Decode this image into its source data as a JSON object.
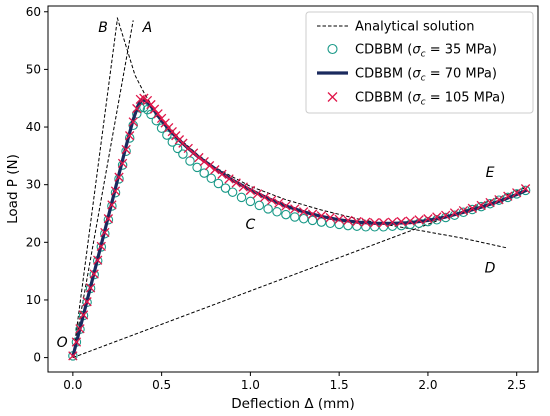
{
  "chart_data": {
    "type": "line",
    "xlabel": "Deflection Δ (mm)",
    "ylabel": "Load P (N)",
    "xlim": [
      -0.14,
      2.62
    ],
    "ylim": [
      -2.5,
      61
    ],
    "xticks": [
      0.0,
      0.5,
      1.0,
      1.5,
      2.0,
      2.5
    ],
    "yticks": [
      0,
      10,
      20,
      30,
      40,
      50,
      60
    ],
    "xtick_labels": [
      "0.0",
      "0.5",
      "1.0",
      "1.5",
      "2.0",
      "2.5"
    ],
    "ytick_labels": [
      "0",
      "10",
      "20",
      "30",
      "40",
      "50",
      "60"
    ],
    "grid": false,
    "legend_position": "top-right",
    "annotations": [
      {
        "text": "A",
        "x": 0.42,
        "y": 56.5
      },
      {
        "text": "B",
        "x": 0.17,
        "y": 56.5
      },
      {
        "text": "C",
        "x": 1.0,
        "y": 22.3
      },
      {
        "text": "D",
        "x": 2.35,
        "y": 14.8
      },
      {
        "text": "E",
        "x": 2.35,
        "y": 31.3
      },
      {
        "text": "O",
        "x": -0.06,
        "y": 1.8
      }
    ],
    "series": [
      {
        "name": "Analytical solution",
        "style": "dashed",
        "color": "#000000",
        "segments": [
          {
            "x": [
              0.0,
              0.34
            ],
            "y": [
              0.0,
              58.5
            ]
          },
          {
            "x": [
              0.0,
              0.25
            ],
            "y": [
              0.0,
              58.5
            ]
          },
          {
            "x": [
              0.25,
              0.3,
              0.35,
              0.4,
              0.45,
              0.5,
              0.6,
              0.7,
              0.8,
              1.0,
              1.2,
              1.4,
              1.6,
              1.8,
              2.0,
              2.2,
              2.45
            ],
            "y": [
              59.0,
              54.0,
              49.0,
              46.0,
              43.5,
              41.5,
              38.0,
              35.3,
              33.0,
              29.7,
              27.4,
              25.6,
              24.1,
              22.9,
              21.8,
              20.7,
              19.0
            ]
          },
          {
            "x": [
              0.0,
              2.55
            ],
            "y": [
              0.0,
              29.5
            ]
          }
        ]
      },
      {
        "name": "CDBBM (σc = 35 MPa)",
        "legend_label": "CDBBM (",
        "legend_sym": "σ",
        "legend_sub": "c",
        "legend_rest": " = 35 MPa)",
        "marker": "circle-open",
        "color": "#1a9988",
        "x": [
          0.0,
          0.02,
          0.04,
          0.06,
          0.08,
          0.1,
          0.12,
          0.14,
          0.16,
          0.18,
          0.2,
          0.22,
          0.24,
          0.26,
          0.28,
          0.3,
          0.32,
          0.34,
          0.36,
          0.38,
          0.4,
          0.42,
          0.44,
          0.47,
          0.5,
          0.53,
          0.56,
          0.59,
          0.62,
          0.66,
          0.7,
          0.74,
          0.78,
          0.82,
          0.86,
          0.9,
          0.95,
          1.0,
          1.05,
          1.1,
          1.15,
          1.2,
          1.25,
          1.3,
          1.35,
          1.4,
          1.45,
          1.5,
          1.55,
          1.6,
          1.65,
          1.7,
          1.75,
          1.8,
          1.85,
          1.9,
          1.95,
          2.0,
          2.05,
          2.1,
          2.15,
          2.2,
          2.25,
          2.3,
          2.35,
          2.4,
          2.45,
          2.5,
          2.55
        ],
        "y": [
          0.3,
          2.7,
          4.9,
          7.3,
          9.6,
          12.0,
          14.4,
          16.8,
          19.2,
          21.5,
          23.9,
          26.3,
          28.6,
          31.0,
          33.4,
          35.8,
          38.1,
          40.3,
          42.3,
          43.3,
          43.4,
          43.0,
          42.2,
          41.1,
          39.8,
          38.6,
          37.4,
          36.3,
          35.3,
          34.1,
          33.0,
          32.0,
          31.1,
          30.2,
          29.4,
          28.7,
          27.8,
          27.1,
          26.4,
          25.8,
          25.3,
          24.8,
          24.4,
          24.1,
          23.8,
          23.5,
          23.3,
          23.1,
          22.9,
          22.8,
          22.7,
          22.7,
          22.7,
          22.8,
          22.9,
          23.1,
          23.3,
          23.6,
          23.9,
          24.3,
          24.7,
          25.2,
          25.7,
          26.2,
          26.7,
          27.3,
          27.8,
          28.4,
          29.0
        ]
      },
      {
        "name": "CDBBM (σc = 70 MPa)",
        "legend_label": "CDBBM (",
        "legend_sym": "σ",
        "legend_sub": "c",
        "legend_rest": " = 70 MPa)",
        "marker": "line",
        "color": "#1b2a5e",
        "x": [
          0.0,
          0.05,
          0.1,
          0.15,
          0.2,
          0.25,
          0.3,
          0.34,
          0.37,
          0.39,
          0.41,
          0.43,
          0.46,
          0.5,
          0.55,
          0.6,
          0.65,
          0.7,
          0.8,
          0.9,
          1.0,
          1.1,
          1.2,
          1.3,
          1.4,
          1.5,
          1.6,
          1.7,
          1.8,
          1.9,
          2.0,
          2.1,
          2.2,
          2.3,
          2.4,
          2.5,
          2.56
        ],
        "y": [
          0.2,
          6.2,
          12.3,
          18.4,
          24.5,
          30.6,
          36.7,
          41.3,
          43.9,
          44.7,
          44.6,
          44.0,
          42.8,
          41.1,
          39.3,
          37.7,
          36.3,
          35.0,
          32.8,
          30.8,
          29.1,
          27.6,
          26.3,
          25.3,
          24.5,
          23.9,
          23.5,
          23.3,
          23.3,
          23.4,
          23.8,
          24.4,
          25.2,
          26.1,
          27.1,
          28.3,
          29.1
        ]
      },
      {
        "name": "CDBBM (σc = 105 MPa)",
        "legend_label": "CDBBM (",
        "legend_sym": "σ",
        "legend_sub": "c",
        "legend_rest": " = 105 MPa)",
        "marker": "x",
        "color": "#e0164a",
        "x": [
          0.0,
          0.02,
          0.04,
          0.06,
          0.08,
          0.1,
          0.12,
          0.14,
          0.16,
          0.18,
          0.2,
          0.22,
          0.24,
          0.26,
          0.28,
          0.3,
          0.32,
          0.34,
          0.36,
          0.38,
          0.4,
          0.42,
          0.44,
          0.46,
          0.48,
          0.5,
          0.52,
          0.54,
          0.56,
          0.58,
          0.6,
          0.62,
          0.65,
          0.68,
          0.71,
          0.74,
          0.77,
          0.8,
          0.84,
          0.88,
          0.92,
          0.96,
          1.0,
          1.04,
          1.08,
          1.12,
          1.16,
          1.2,
          1.25,
          1.3,
          1.35,
          1.4,
          1.45,
          1.5,
          1.55,
          1.6,
          1.65,
          1.7,
          1.75,
          1.8,
          1.85,
          1.9,
          1.95,
          2.0,
          2.05,
          2.1,
          2.15,
          2.2,
          2.25,
          2.3,
          2.35,
          2.4,
          2.45,
          2.5,
          2.55
        ],
        "y": [
          0.3,
          2.7,
          5.0,
          7.4,
          9.7,
          12.1,
          14.5,
          16.9,
          19.3,
          21.7,
          24.1,
          26.5,
          28.9,
          31.3,
          33.7,
          36.1,
          38.5,
          40.9,
          43.2,
          44.8,
          45.0,
          44.6,
          43.9,
          43.1,
          42.3,
          41.5,
          40.7,
          39.9,
          39.2,
          38.5,
          37.8,
          37.2,
          36.3,
          35.5,
          34.7,
          34.0,
          33.3,
          32.6,
          31.8,
          31.0,
          30.3,
          29.6,
          29.0,
          28.4,
          27.8,
          27.3,
          26.8,
          26.3,
          25.8,
          25.3,
          24.9,
          24.6,
          24.3,
          24.0,
          23.8,
          23.6,
          23.5,
          23.4,
          23.4,
          23.5,
          23.6,
          23.7,
          23.9,
          24.1,
          24.4,
          24.7,
          25.1,
          25.5,
          25.9,
          26.4,
          26.9,
          27.4,
          28.0,
          28.6,
          29.3
        ]
      }
    ]
  }
}
